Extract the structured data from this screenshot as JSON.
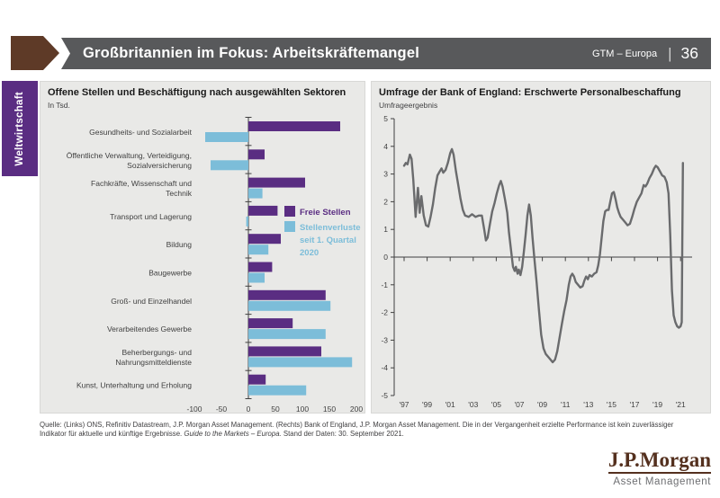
{
  "header": {
    "title": "Großbritannien im Fokus: Arbeitskräftemangel",
    "gtm_label": "GTM – Europa",
    "separator": "|",
    "page_number": "36"
  },
  "sidebar": {
    "label": "Weltwirtschaft"
  },
  "colors": {
    "header_bar": "#58595b",
    "header_arrow_brown": "#5e3a27",
    "sidebar_purple": "#5a2d82",
    "panel_background": "#e9e9e7",
    "bar_purple": "#5a2d82",
    "bar_teal": "#7cbdd9",
    "line_gray": "#6a6b6d",
    "axis_gray": "#404040",
    "logo_brown": "#54301e"
  },
  "chart_data": [
    {
      "type": "bar",
      "orientation": "horizontal",
      "title": "Offene Stellen und Beschäftigung nach ausgewählten Sektoren",
      "subtitle": "In Tsd.",
      "xlim": [
        -100,
        200
      ],
      "x_ticks": [
        -100,
        -50,
        0,
        50,
        100,
        150,
        200
      ],
      "grid": false,
      "legend_position": "inside-top-right",
      "categories": [
        "Gesundheits- und Sozialarbeit",
        "Öffentliche Verwaltung, Verteidigung, Sozialversicherung",
        "Fachkräfte, Wissenschaft und Technik",
        "Transport und Lagerung",
        "Bildung",
        "Baugewerbe",
        "Groß- und Einzelhandel",
        "Verarbeitendes Gewerbe",
        "Beherbergungs- und Nahrungsmitteldienste",
        "Kunst, Unterhaltung und Erholung"
      ],
      "categories_lines": [
        [
          "Gesundheits- und Sozialarbeit"
        ],
        [
          "Öffentliche Verwaltung, Verteidigung,",
          "Sozialversicherung"
        ],
        [
          "Fachkräfte, Wissenschaft und",
          "Technik"
        ],
        [
          "Transport und Lagerung"
        ],
        [
          "Bildung"
        ],
        [
          "Baugewerbe"
        ],
        [
          "Groß- und Einzelhandel"
        ],
        [
          "Verarbeitendes Gewerbe"
        ],
        [
          "Beherbergungs- und",
          "Nahrungsmitteldienste"
        ],
        [
          "Kunst, Unterhaltung und Erholung"
        ]
      ],
      "series": [
        {
          "name": "Freie Stellen",
          "color": "#5a2d82",
          "values": [
            170,
            30,
            105,
            54,
            60,
            44,
            143,
            82,
            135,
            32
          ]
        },
        {
          "name": "Stellenverluste seit 1. Quartal 2020",
          "color": "#7cbdd9",
          "values": [
            -80,
            -70,
            26,
            -4,
            37,
            30,
            152,
            143,
            192,
            107
          ]
        }
      ],
      "legend_lines": [
        [
          "Freie Stellen"
        ],
        [
          "Stellenverluste",
          "seit 1. Quartal",
          "2020"
        ]
      ]
    },
    {
      "type": "line",
      "title": "Umfrage der Bank of England: Erschwerte Personalbeschaffung",
      "subtitle": "Umfrageergebnis",
      "ylim": [
        -5,
        5
      ],
      "y_ticks": [
        5,
        4,
        3,
        2,
        1,
        0,
        -1,
        -2,
        -3,
        -4,
        -5
      ],
      "x_tick_years": [
        1997,
        1999,
        2001,
        2003,
        2005,
        2007,
        2009,
        2011,
        2013,
        2015,
        2017,
        2019,
        2021
      ],
      "x_tick_labels": [
        "'97",
        "'99",
        "'01",
        "'03",
        "'05",
        "'07",
        "'09",
        "'11",
        "'13",
        "'15",
        "'17",
        "'19",
        "'21"
      ],
      "grid": false,
      "line_color": "#6a6b6d",
      "series": [
        {
          "name": "Erschwerte Personalbeschaffung (Umfrageergebnis)",
          "points": [
            [
              1997.0,
              3.3
            ],
            [
              1997.15,
              3.4
            ],
            [
              1997.3,
              3.35
            ],
            [
              1997.5,
              3.7
            ],
            [
              1997.65,
              3.55
            ],
            [
              1997.8,
              2.8
            ],
            [
              1998.0,
              1.45
            ],
            [
              1998.2,
              2.5
            ],
            [
              1998.35,
              1.6
            ],
            [
              1998.5,
              2.2
            ],
            [
              1998.7,
              1.5
            ],
            [
              1998.9,
              1.15
            ],
            [
              1999.1,
              1.1
            ],
            [
              1999.3,
              1.45
            ],
            [
              1999.5,
              1.9
            ],
            [
              1999.7,
              2.5
            ],
            [
              1999.9,
              2.95
            ],
            [
              2000.1,
              3.1
            ],
            [
              2000.25,
              3.2
            ],
            [
              2000.4,
              3.05
            ],
            [
              2000.6,
              3.15
            ],
            [
              2000.8,
              3.4
            ],
            [
              2001.0,
              3.75
            ],
            [
              2001.15,
              3.9
            ],
            [
              2001.3,
              3.7
            ],
            [
              2001.5,
              3.1
            ],
            [
              2001.7,
              2.6
            ],
            [
              2001.9,
              2.1
            ],
            [
              2002.1,
              1.7
            ],
            [
              2002.3,
              1.5
            ],
            [
              2002.6,
              1.45
            ],
            [
              2002.9,
              1.55
            ],
            [
              2003.2,
              1.45
            ],
            [
              2003.5,
              1.5
            ],
            [
              2003.75,
              1.5
            ],
            [
              2003.95,
              1.0
            ],
            [
              2004.1,
              0.6
            ],
            [
              2004.25,
              0.7
            ],
            [
              2004.45,
              1.2
            ],
            [
              2004.65,
              1.65
            ],
            [
              2004.85,
              1.95
            ],
            [
              2005.05,
              2.3
            ],
            [
              2005.25,
              2.6
            ],
            [
              2005.4,
              2.75
            ],
            [
              2005.55,
              2.55
            ],
            [
              2005.75,
              2.1
            ],
            [
              2005.95,
              1.6
            ],
            [
              2006.1,
              0.9
            ],
            [
              2006.3,
              0.2
            ],
            [
              2006.45,
              -0.35
            ],
            [
              2006.6,
              -0.5
            ],
            [
              2006.7,
              -0.35
            ],
            [
              2006.85,
              -0.6
            ],
            [
              2006.95,
              -0.45
            ],
            [
              2007.1,
              -0.65
            ],
            [
              2007.25,
              -0.35
            ],
            [
              2007.4,
              0.2
            ],
            [
              2007.55,
              0.8
            ],
            [
              2007.7,
              1.5
            ],
            [
              2007.85,
              1.9
            ],
            [
              2008.0,
              1.5
            ],
            [
              2008.15,
              0.7
            ],
            [
              2008.3,
              0.0
            ],
            [
              2008.5,
              -0.9
            ],
            [
              2008.7,
              -1.9
            ],
            [
              2008.9,
              -2.8
            ],
            [
              2009.1,
              -3.3
            ],
            [
              2009.3,
              -3.5
            ],
            [
              2009.6,
              -3.65
            ],
            [
              2009.9,
              -3.8
            ],
            [
              2010.1,
              -3.7
            ],
            [
              2010.3,
              -3.4
            ],
            [
              2010.5,
              -2.9
            ],
            [
              2010.7,
              -2.4
            ],
            [
              2010.9,
              -1.95
            ],
            [
              2011.1,
              -1.55
            ],
            [
              2011.3,
              -1.0
            ],
            [
              2011.45,
              -0.7
            ],
            [
              2011.6,
              -0.6
            ],
            [
              2011.75,
              -0.7
            ],
            [
              2011.9,
              -0.9
            ],
            [
              2012.1,
              -1.0
            ],
            [
              2012.3,
              -1.1
            ],
            [
              2012.5,
              -1.05
            ],
            [
              2012.65,
              -0.85
            ],
            [
              2012.8,
              -0.7
            ],
            [
              2012.95,
              -0.8
            ],
            [
              2013.1,
              -0.65
            ],
            [
              2013.3,
              -0.7
            ],
            [
              2013.5,
              -0.6
            ],
            [
              2013.7,
              -0.55
            ],
            [
              2013.85,
              -0.3
            ],
            [
              2014.0,
              0.1
            ],
            [
              2014.15,
              0.7
            ],
            [
              2014.3,
              1.3
            ],
            [
              2014.45,
              1.65
            ],
            [
              2014.6,
              1.7
            ],
            [
              2014.75,
              1.7
            ],
            [
              2014.9,
              2.0
            ],
            [
              2015.05,
              2.3
            ],
            [
              2015.2,
              2.35
            ],
            [
              2015.35,
              2.1
            ],
            [
              2015.5,
              1.8
            ],
            [
              2015.65,
              1.6
            ],
            [
              2015.8,
              1.45
            ],
            [
              2016.0,
              1.35
            ],
            [
              2016.2,
              1.25
            ],
            [
              2016.4,
              1.15
            ],
            [
              2016.6,
              1.2
            ],
            [
              2016.8,
              1.45
            ],
            [
              2017.0,
              1.75
            ],
            [
              2017.2,
              2.0
            ],
            [
              2017.4,
              2.15
            ],
            [
              2017.6,
              2.3
            ],
            [
              2017.8,
              2.6
            ],
            [
              2017.95,
              2.55
            ],
            [
              2018.1,
              2.65
            ],
            [
              2018.3,
              2.85
            ],
            [
              2018.5,
              3.0
            ],
            [
              2018.7,
              3.2
            ],
            [
              2018.85,
              3.3
            ],
            [
              2019.0,
              3.25
            ],
            [
              2019.2,
              3.1
            ],
            [
              2019.4,
              2.95
            ],
            [
              2019.6,
              2.9
            ],
            [
              2019.8,
              2.7
            ],
            [
              2019.95,
              2.3
            ],
            [
              2020.1,
              0.8
            ],
            [
              2020.25,
              -1.2
            ],
            [
              2020.4,
              -2.1
            ],
            [
              2020.55,
              -2.35
            ],
            [
              2020.7,
              -2.5
            ],
            [
              2020.85,
              -2.55
            ],
            [
              2021.0,
              -2.5
            ],
            [
              2021.1,
              -2.35
            ],
            [
              2021.15,
              0.5
            ],
            [
              2021.2,
              3.4
            ]
          ]
        }
      ]
    }
  ],
  "footer": {
    "part1": "Quelle: (Links) ONS, Refinitiv Datastream, J.P. Morgan Asset Management. (Rechts) Bank of England, J.P. Morgan Asset Management. Die in der Vergangenheit erzielte Performance ist kein zuverlässiger Indikator für aktuelle und künftige Ergebnisse.",
    "part2_italic": "Guide to the Markets – Europa.",
    "part3": "Stand der Daten: 30. September 2021."
  },
  "logo": {
    "wordmark": "J.P.Morgan",
    "subtitle": "Asset Management"
  }
}
